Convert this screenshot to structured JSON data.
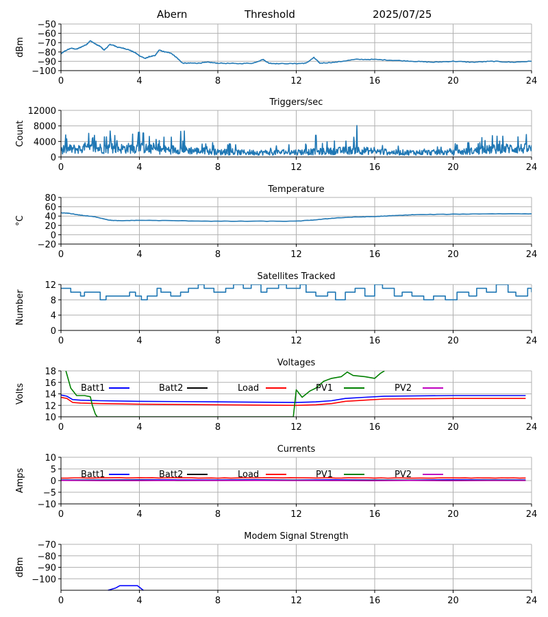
{
  "header": {
    "station": "Abern",
    "label": "Threshold",
    "date": "2025/07/25"
  },
  "colors": {
    "trace": "#1f77b4",
    "grid": "#b0b0b0",
    "batt1": "#0000ff",
    "batt2": "#000000",
    "load": "#ff0000",
    "pv1": "#008000",
    "pv2": "#bf00bf"
  },
  "chart_data": [
    {
      "id": "signal",
      "type": "line",
      "title": "",
      "ylabel": "dBm",
      "xlim": [
        0,
        24
      ],
      "ylim": [
        -100,
        -50
      ],
      "xticks": [
        0,
        4,
        8,
        12,
        16,
        20,
        24
      ],
      "yticks": [
        -100,
        -90,
        -80,
        -70,
        -60,
        -50
      ],
      "ytick_labels": [
        "−100",
        "−90",
        "−80",
        "−70",
        "−60",
        "−50"
      ],
      "grid": true,
      "series": [
        {
          "color": "#1f77b4",
          "x": [
            0,
            0.2,
            0.5,
            0.8,
            1.0,
            1.3,
            1.5,
            1.8,
            2.0,
            2.2,
            2.5,
            2.7,
            2.9,
            3.2,
            3.5,
            3.8,
            4.0,
            4.3,
            4.5,
            4.8,
            5.0,
            5.3,
            5.6,
            5.9,
            6.2,
            6.6,
            7.0,
            7.5,
            8.0,
            9.0,
            9.8,
            10.3,
            10.6,
            11.0,
            12.0,
            12.5,
            12.9,
            13.2,
            14.0,
            15.0,
            16.0,
            17.0,
            18.0,
            19.0,
            20.0,
            21.0,
            22.0,
            23.0,
            24.0
          ],
          "y": [
            -82,
            -79,
            -76,
            -77,
            -75,
            -72,
            -68,
            -72,
            -74,
            -78,
            -72,
            -73,
            -75,
            -76,
            -78,
            -81,
            -84,
            -87,
            -85,
            -84,
            -78,
            -80,
            -81,
            -86,
            -92,
            -92,
            -92,
            -91,
            -92,
            -92.5,
            -92,
            -88,
            -92,
            -92.5,
            -92.5,
            -92,
            -86,
            -92,
            -91,
            -88,
            -88,
            -89,
            -90,
            -91,
            -90,
            -91,
            -90,
            -91,
            -90
          ]
        }
      ]
    },
    {
      "id": "triggers",
      "type": "line",
      "title": "Triggers/sec",
      "ylabel": "Count",
      "xlim": [
        0,
        24
      ],
      "ylim": [
        0,
        12000
      ],
      "xticks": [
        0,
        4,
        8,
        12,
        16,
        20,
        24
      ],
      "yticks": [
        0,
        4000,
        8000,
        12000
      ],
      "ytick_labels": [
        "0",
        "4000",
        "8000",
        "12000"
      ],
      "grid": true,
      "noise": true,
      "series": [
        {
          "color": "#1f77b4",
          "x": [
            0,
            1,
            2,
            3,
            4,
            5,
            6,
            7,
            8,
            9,
            10,
            11,
            12,
            13,
            14,
            15,
            16,
            17,
            18,
            19,
            20,
            21,
            22,
            23,
            24
          ],
          "y": [
            2200,
            2300,
            2500,
            2400,
            2600,
            2000,
            2200,
            1700,
            1400,
            1300,
            1300,
            1300,
            1400,
            1500,
            1700,
            2000,
            1600,
            1300,
            1300,
            1300,
            1300,
            1700,
            2200,
            2500,
            2300
          ],
          "spikes": [
            {
              "x": 0.3,
              "y": 4700
            },
            {
              "x": 1.7,
              "y": 5600
            },
            {
              "x": 2.5,
              "y": 6700
            },
            {
              "x": 4.2,
              "y": 6200
            },
            {
              "x": 6.1,
              "y": 6600
            },
            {
              "x": 6.3,
              "y": 6700
            },
            {
              "x": 13.0,
              "y": 5600
            },
            {
              "x": 15.1,
              "y": 8100
            },
            {
              "x": 22.0,
              "y": 5500
            },
            {
              "x": 23.3,
              "y": 5200
            }
          ]
        }
      ]
    },
    {
      "id": "temperature",
      "type": "line",
      "title": "Temperature",
      "ylabel": "°C",
      "xlim": [
        0,
        24
      ],
      "ylim": [
        -20,
        80
      ],
      "xticks": [
        0,
        4,
        8,
        12,
        16,
        20,
        24
      ],
      "yticks": [
        -20,
        0,
        20,
        40,
        60,
        80
      ],
      "ytick_labels": [
        "−20",
        "0",
        "20",
        "40",
        "60",
        "80"
      ],
      "grid": true,
      "series": [
        {
          "color": "#1f77b4",
          "x": [
            0,
            0.4,
            1.0,
            1.8,
            2.5,
            3.0,
            4.0,
            6.0,
            8.0,
            10.0,
            12.0,
            13.0,
            14.0,
            15.0,
            16.0,
            17.0,
            18.0,
            20.0,
            22.0,
            24.0
          ],
          "y": [
            47,
            46,
            42,
            38,
            31,
            30,
            31,
            30,
            29,
            29,
            29,
            32,
            36,
            38,
            39,
            41,
            43,
            44,
            45,
            45
          ]
        }
      ]
    },
    {
      "id": "satellites",
      "type": "line",
      "title": "Satellites Tracked",
      "ylabel": "Number",
      "xlim": [
        0,
        24
      ],
      "ylim": [
        0,
        12
      ],
      "xticks": [
        0,
        4,
        8,
        12,
        16,
        20,
        24
      ],
      "yticks": [
        0,
        4,
        8,
        12
      ],
      "ytick_labels": [
        "0",
        "4",
        "8",
        "12"
      ],
      "grid": true,
      "step": true,
      "series": [
        {
          "color": "#1f77b4",
          "x": [
            0,
            0.2,
            0.5,
            1.0,
            1.2,
            2.0,
            2.3,
            2.5,
            3.5,
            3.8,
            4.1,
            4.4,
            4.9,
            5.1,
            5.6,
            6.1,
            6.5,
            7.0,
            7.3,
            7.8,
            8.4,
            8.8,
            9.3,
            9.7,
            10.2,
            10.5,
            11.1,
            11.5,
            12.2,
            12.5,
            13.0,
            13.6,
            14.0,
            14.5,
            15.0,
            15.5,
            16.0,
            16.4,
            17.0,
            17.4,
            17.9,
            18.5,
            19.0,
            19.6,
            20.2,
            20.8,
            21.2,
            21.7,
            22.2,
            22.8,
            23.2,
            23.8,
            24.0
          ],
          "y": [
            11,
            11,
            10,
            9,
            10,
            8,
            9,
            9,
            10,
            9,
            8,
            9,
            11,
            10,
            9,
            10,
            11,
            12,
            11,
            10,
            11,
            12,
            11,
            12,
            10,
            11,
            12,
            11,
            12,
            10,
            9,
            10,
            8,
            10,
            11,
            9,
            12,
            11,
            9,
            10,
            9,
            8,
            9,
            8,
            10,
            9,
            11,
            10,
            12,
            10,
            9,
            11,
            10
          ]
        }
      ]
    },
    {
      "id": "voltages",
      "type": "line",
      "title": "Voltages",
      "ylabel": "Volts",
      "xlim": [
        0,
        24
      ],
      "ylim": [
        10,
        18
      ],
      "xticks": [
        0,
        4,
        8,
        12,
        16,
        20,
        24
      ],
      "yticks": [
        10,
        12,
        14,
        16,
        18
      ],
      "ytick_labels": [
        "10",
        "12",
        "14",
        "16",
        "18"
      ],
      "grid": true,
      "legend_position": "top-inside",
      "series": [
        {
          "name": "Batt1",
          "color": "#0000ff",
          "x": [
            0,
            0.3,
            0.6,
            1.0,
            2.0,
            4.0,
            8.0,
            12.0,
            13.0,
            13.8,
            14.5,
            15.5,
            16.5,
            20.0,
            23.7
          ],
          "y": [
            13.8,
            13.6,
            13.0,
            12.9,
            12.8,
            12.7,
            12.6,
            12.5,
            12.6,
            12.8,
            13.2,
            13.4,
            13.6,
            13.7,
            13.7
          ]
        },
        {
          "name": "Batt2",
          "color": "#000000",
          "x": [],
          "y": []
        },
        {
          "name": "Load",
          "color": "#ff0000",
          "x": [
            0,
            0.3,
            0.6,
            1.0,
            2.0,
            4.0,
            8.0,
            12.0,
            13.0,
            13.8,
            14.5,
            15.5,
            16.5,
            20.0,
            23.7
          ],
          "y": [
            13.4,
            13.2,
            12.5,
            12.4,
            12.3,
            12.2,
            12.1,
            12.0,
            12.1,
            12.3,
            12.7,
            12.9,
            13.1,
            13.2,
            13.2
          ]
        },
        {
          "name": "PV1",
          "color": "#008000",
          "x": [
            0.25,
            0.5,
            0.8,
            1.2,
            1.5,
            1.6,
            1.75,
            1.85,
            11.85,
            12.0,
            12.3,
            12.7,
            13.0,
            13.4,
            13.8,
            14.3,
            14.6,
            14.9,
            15.5,
            16.0,
            16.3,
            16.5
          ],
          "y": [
            18.0,
            15.0,
            13.7,
            13.7,
            13.5,
            12.0,
            10.5,
            10.0,
            10.0,
            14.7,
            13.4,
            14.5,
            15.0,
            16.2,
            16.7,
            17.0,
            17.8,
            17.2,
            17.0,
            16.7,
            17.6,
            18.0
          ]
        },
        {
          "name": "PV2",
          "color": "#bf00bf",
          "x": [],
          "y": []
        }
      ]
    },
    {
      "id": "currents",
      "type": "line",
      "title": "Currents",
      "ylabel": "Amps",
      "xlim": [
        0,
        24
      ],
      "ylim": [
        -10,
        10
      ],
      "xticks": [
        0,
        4,
        8,
        12,
        16,
        20,
        24
      ],
      "yticks": [
        -10,
        -5,
        0,
        5,
        10
      ],
      "ytick_labels": [
        "−10",
        "−5",
        "0",
        "5",
        "10"
      ],
      "grid": true,
      "legend_position": "top-inside",
      "series": [
        {
          "name": "Batt1",
          "color": "#0000ff",
          "x": [
            0,
            23.7
          ],
          "y": [
            0.3,
            0.3
          ]
        },
        {
          "name": "Batt2",
          "color": "#000000",
          "x": [],
          "y": []
        },
        {
          "name": "Load",
          "color": "#ff0000",
          "x": [
            0,
            4,
            8,
            12,
            16,
            20,
            23.7
          ],
          "y": [
            1.1,
            1.2,
            1.1,
            1.2,
            1.1,
            1.1,
            1.1
          ]
        },
        {
          "name": "PV1",
          "color": "#008000",
          "x": [
            0,
            23.7
          ],
          "y": [
            0.1,
            0.1
          ]
        },
        {
          "name": "PV2",
          "color": "#bf00bf",
          "x": [
            0,
            23.7
          ],
          "y": [
            0.0,
            0.0
          ]
        }
      ]
    },
    {
      "id": "modem",
      "type": "line",
      "title": "Modem Signal Strength",
      "ylabel": "dBm",
      "xlim": [
        0,
        24
      ],
      "ylim": [
        -110,
        -70
      ],
      "xticks": [
        0,
        4,
        8,
        12,
        16,
        20,
        24
      ],
      "yticks": [
        -100,
        -90,
        -80,
        -70
      ],
      "ytick_labels": [
        "−100",
        "−90",
        "−80",
        "−70"
      ],
      "grid": true,
      "series": [
        {
          "color": "#0000ff",
          "x": [
            2.4,
            2.8,
            3.0,
            3.9,
            4.2
          ],
          "y": [
            -110,
            -108,
            -106,
            -106,
            -110
          ]
        }
      ]
    }
  ]
}
